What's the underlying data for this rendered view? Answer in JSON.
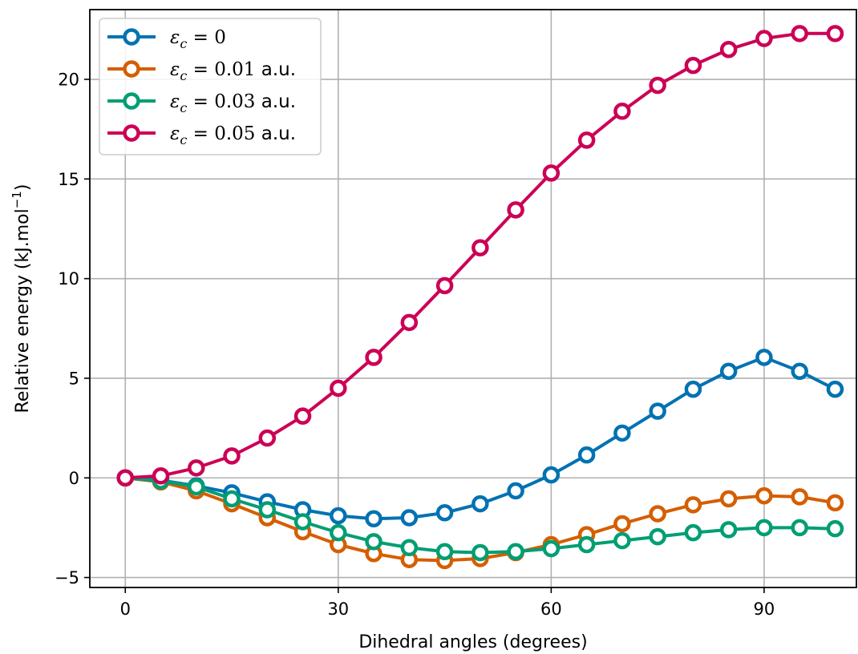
{
  "chart_data": {
    "type": "line",
    "title": "",
    "xlabel": "Dihedral angles (degrees)",
    "ylabel": "Relative energy (kJ.mol",
    "ylabel_superscript": "−1",
    "ylabel_suffix": ")",
    "xlim": [
      -5,
      103
    ],
    "ylim": [
      -5.5,
      23.5
    ],
    "xticks": [
      0,
      30,
      60,
      90
    ],
    "xtick_labels": [
      "0",
      "30",
      "60",
      "90"
    ],
    "yticks": [
      -5,
      0,
      5,
      10,
      15,
      20
    ],
    "ytick_labels": [
      "−5",
      "0",
      "5",
      "10",
      "15",
      "20"
    ],
    "grid": true,
    "legend_position": "top-left",
    "x": [
      0,
      5,
      10,
      15,
      20,
      25,
      30,
      35,
      40,
      45,
      50,
      55,
      60,
      65,
      70,
      75,
      80,
      85,
      90,
      95,
      100
    ],
    "series": [
      {
        "legend_symbol": "ε",
        "legend_sub": "c",
        "legend_value": " = 0",
        "legend_unit": "",
        "color": "#0072B2",
        "values": [
          0,
          -0.12,
          -0.4,
          -0.75,
          -1.2,
          -1.6,
          -1.9,
          -2.05,
          -2.0,
          -1.75,
          -1.3,
          -0.65,
          0.15,
          1.15,
          2.25,
          3.35,
          4.45,
          5.35,
          6.05,
          5.35,
          4.45
        ]
      },
      {
        "legend_symbol": "ε",
        "legend_sub": "c",
        "legend_value": " = 0.01",
        "legend_unit": " a.u.",
        "color": "#D55E00",
        "values": [
          0,
          -0.2,
          -0.65,
          -1.3,
          -2.0,
          -2.7,
          -3.35,
          -3.8,
          -4.1,
          -4.15,
          -4.05,
          -3.75,
          -3.35,
          -2.85,
          -2.3,
          -1.8,
          -1.35,
          -1.05,
          -0.9,
          -0.95,
          -1.25
        ]
      },
      {
        "legend_symbol": "ε",
        "legend_sub": "c",
        "legend_value": " = 0.03",
        "legend_unit": " a.u.",
        "color": "#009E73",
        "values": [
          0,
          -0.15,
          -0.45,
          -1.05,
          -1.6,
          -2.2,
          -2.75,
          -3.2,
          -3.5,
          -3.7,
          -3.75,
          -3.7,
          -3.55,
          -3.35,
          -3.15,
          -2.95,
          -2.75,
          -2.6,
          -2.5,
          -2.5,
          -2.55
        ]
      },
      {
        "legend_symbol": "ε",
        "legend_sub": "c",
        "legend_value": " = 0.05",
        "legend_unit": " a.u.",
        "color": "#CC0055",
        "values": [
          0,
          0.1,
          0.5,
          1.1,
          2.0,
          3.1,
          4.5,
          6.05,
          7.8,
          9.65,
          11.55,
          13.45,
          15.3,
          16.95,
          18.4,
          19.7,
          20.7,
          21.5,
          22.05,
          22.3,
          22.3
        ]
      }
    ]
  }
}
